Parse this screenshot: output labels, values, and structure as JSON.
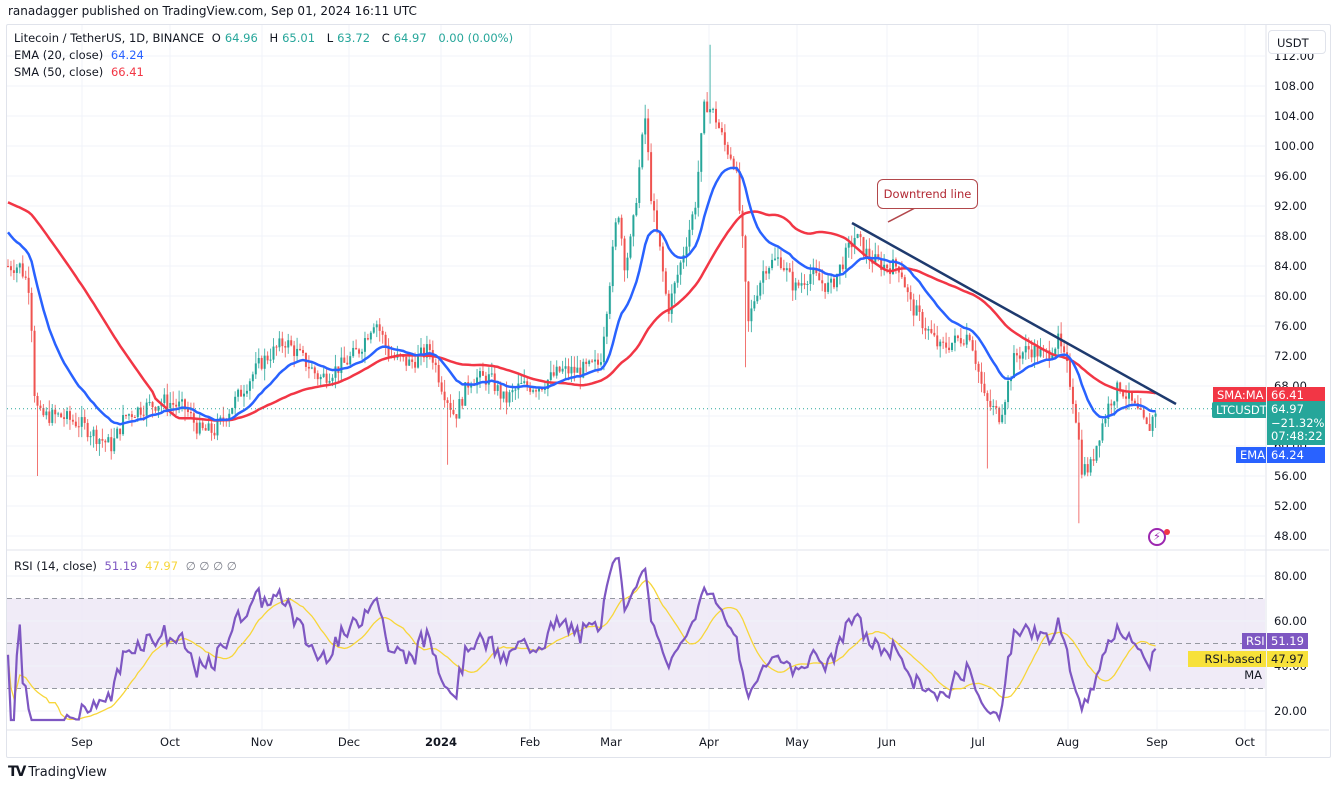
{
  "header": {
    "publisher_line": "ranadagger published on TradingView.com, Sep 01, 2024 16:11 UTC"
  },
  "legend": {
    "symbol": "Litecoin / TetherUS, 1D, BINANCE",
    "open_label": "O",
    "open": "64.96",
    "high_label": "H",
    "high": "65.01",
    "low_label": "L",
    "low": "63.72",
    "close_label": "C",
    "close": "64.97",
    "change": "0.00 (0.00%)",
    "ema_label": "EMA (20, close)",
    "ema_value": "64.24",
    "sma_label": "SMA (50, close)",
    "sma_value": "66.41",
    "rsi_label": "RSI (14, close)",
    "rsi_value": "51.19",
    "rsi_ma_value": "47.97",
    "rsi_extra": "∅ ∅ ∅ ∅"
  },
  "axis": {
    "currency_button": "USDT",
    "price_ticks": [
      "112.00",
      "108.00",
      "104.00",
      "100.00",
      "96.00",
      "92.00",
      "88.00",
      "84.00",
      "80.00",
      "76.00",
      "72.00",
      "68.00",
      "64.00",
      "60.00",
      "56.00",
      "52.00",
      "48.00"
    ],
    "rsi_ticks": [
      "80.00",
      "60.00",
      "40.00",
      "20.00"
    ],
    "time_ticks": [
      "Sep",
      "Oct",
      "Nov",
      "Dec",
      "2024",
      "Feb",
      "Mar",
      "Apr",
      "May",
      "Jun",
      "Jul",
      "Aug",
      "Sep",
      "Oct"
    ]
  },
  "tags": {
    "sma_name": "SMA:MA",
    "sma_value": "66.41",
    "symbol_name": "LTCUSDT",
    "price": "64.97",
    "pct": "−21.32%",
    "countdown": "07:48:22",
    "ema_name": "EMA",
    "ema_value": "64.24",
    "rsi_name": "RSI",
    "rsi_value": "51.19",
    "rsi_ma_name": "RSI-based MA",
    "rsi_ma_value": "47.97"
  },
  "annotation": {
    "text": "Downtrend line"
  },
  "footer": {
    "brand": "TradingView",
    "brand_mark": "TV"
  },
  "colors": {
    "up": "#26a69a",
    "down": "#ef5350",
    "ema": "#2962ff",
    "sma": "#f23645",
    "trendline": "#1e3a6e",
    "rsi": "#7e57c2",
    "rsi_ma": "#f7d63a",
    "rsi_band": "#ede7f6"
  },
  "chart_data": [
    {
      "type": "candlestick",
      "title": "Litecoin / TetherUS, 1D, BINANCE",
      "xlabel": "",
      "ylabel": "USDT",
      "ylim": [
        46,
        114
      ],
      "x_ticks": [
        "Sep",
        "Oct",
        "Nov",
        "Dec",
        "2024",
        "Feb",
        "Mar",
        "Apr",
        "May",
        "Jun",
        "Jul",
        "Aug",
        "Sep",
        "Oct"
      ],
      "ohlc_last": {
        "open": 64.96,
        "high": 65.01,
        "low": 63.72,
        "close": 64.97
      },
      "approx_close_by_month": [
        {
          "x": "Aug 2023 (mid)",
          "close": 82
        },
        {
          "x": "Sep 2023",
          "close": 63
        },
        {
          "x": "Oct 2023",
          "close": 65
        },
        {
          "x": "Nov 2023",
          "close": 70
        },
        {
          "x": "Dec 2023",
          "close": 72
        },
        {
          "x": "Jan 2024",
          "close": 68
        },
        {
          "x": "Feb 2024",
          "close": 69
        },
        {
          "x": "Mar 2024",
          "close": 92
        },
        {
          "x": "Apr 2024",
          "close": 102
        },
        {
          "x": "May 2024",
          "close": 83
        },
        {
          "x": "Jun 2024",
          "close": 84
        },
        {
          "x": "Jul 2024",
          "close": 72
        },
        {
          "x": "Aug 2024",
          "close": 60
        },
        {
          "x": "Sep 2024 (1st)",
          "close": 64.97
        }
      ],
      "series": [
        {
          "name": "EMA (20, close)",
          "last": 64.24
        },
        {
          "name": "SMA (50, close)",
          "last": 66.41
        }
      ],
      "annotations": [
        {
          "type": "trendline",
          "label": "Downtrend line",
          "from": {
            "x": "May 2024 (~20th)",
            "y": 89.5
          },
          "to": {
            "x": "Sep 2024 (~3rd)",
            "y": 67.2
          }
        },
        {
          "type": "min",
          "x": "Aug 5 2024",
          "y": 49.7
        },
        {
          "type": "max",
          "x": "Apr 1 2024",
          "y": 113.5
        }
      ],
      "grid": true
    },
    {
      "type": "line",
      "title": "RSI (14, close)",
      "ylim": [
        12,
        92
      ],
      "bands": {
        "upper": 70,
        "middle": 50,
        "lower": 30
      },
      "y_ticks": [
        80,
        60,
        40,
        20
      ],
      "series": [
        {
          "name": "RSI",
          "last": 51.19
        },
        {
          "name": "RSI-based MA",
          "last": 47.97
        }
      ]
    }
  ]
}
